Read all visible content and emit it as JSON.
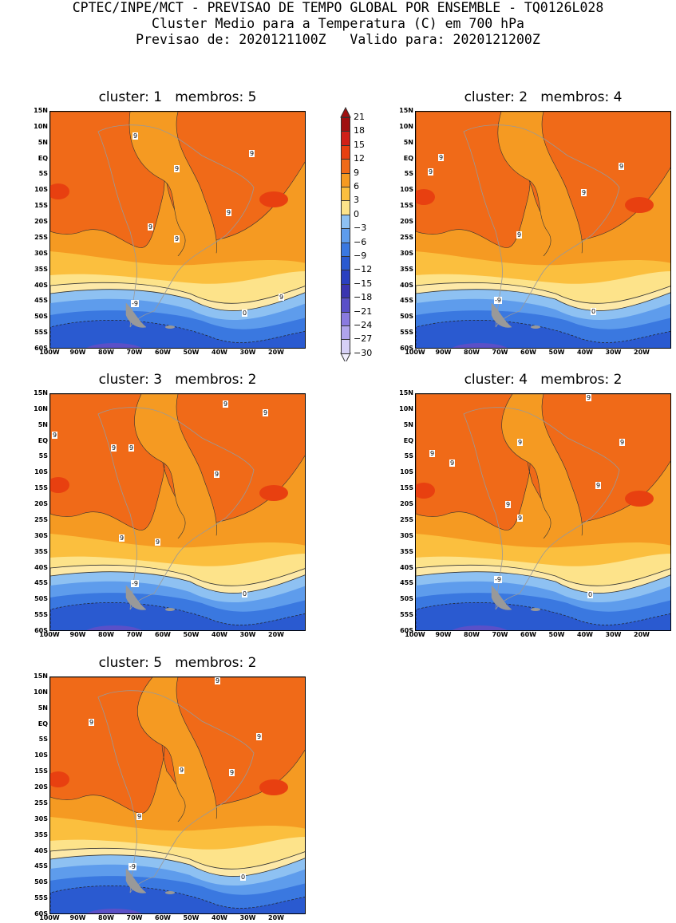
{
  "header": {
    "line1": "CPTEC/INPE/MCT - PREVISAO DE TEMPO GLOBAL POR ENSEMBLE - TQ0126L028",
    "line2": "Cluster Medio para a Temperatura (C) em 700 hPa",
    "line3": "Previsao de: 2020121100Z   Valido para: 2020121200Z"
  },
  "lat_labels": [
    "15N",
    "10N",
    "5N",
    "EQ",
    "5S",
    "10S",
    "15S",
    "20S",
    "25S",
    "30S",
    "35S",
    "40S",
    "45S",
    "50S",
    "55S",
    "60S"
  ],
  "lon_labels": [
    "100W",
    "90W",
    "80W",
    "70W",
    "60W",
    "50W",
    "40W",
    "30W",
    "20W"
  ],
  "colorbar": {
    "labels": [
      "21",
      "18",
      "15",
      "12",
      "9",
      "6",
      "3",
      "0",
      "-3",
      "-6",
      "-9",
      "-12",
      "-15",
      "-18",
      "-21",
      "-24",
      "-27",
      "-30"
    ],
    "colors": [
      "#a01010",
      "#d02018",
      "#e84010",
      "#f06a18",
      "#f59a22",
      "#fbbf3e",
      "#fde38a",
      "#8ec1f2",
      "#5e9cec",
      "#3a78e0",
      "#2a5ad0",
      "#2a40c0",
      "#3a35b0",
      "#5a50c8",
      "#8a7ae0",
      "#b0a4ec",
      "#d6d0f6"
    ],
    "top_color": "#a01010",
    "bottom_color": "#f0eefc"
  },
  "panels": [
    {
      "title": "cluster: 1   membros: 5",
      "contour_labels": [
        "9",
        "9",
        "9",
        "9",
        "9",
        "9",
        "9",
        "-9",
        "0"
      ]
    },
    {
      "title": "cluster: 2   membros: 4",
      "contour_labels": [
        "9",
        "9",
        "9",
        "9",
        "9",
        "-9",
        "0"
      ]
    },
    {
      "title": "cluster: 3   membros: 2",
      "contour_labels": [
        "9",
        "9",
        "9",
        "9",
        "9",
        "9",
        "9",
        "9",
        "-9",
        "0"
      ]
    },
    {
      "title": "cluster: 4   membros: 2",
      "contour_labels": [
        "9",
        "9",
        "9",
        "9",
        "9",
        "9",
        "9",
        "9",
        "-9",
        "0"
      ]
    },
    {
      "title": "cluster: 5   membros: 2",
      "contour_labels": [
        "9",
        "9",
        "9",
        "9",
        "9",
        "9",
        "-9",
        "0"
      ]
    }
  ]
}
